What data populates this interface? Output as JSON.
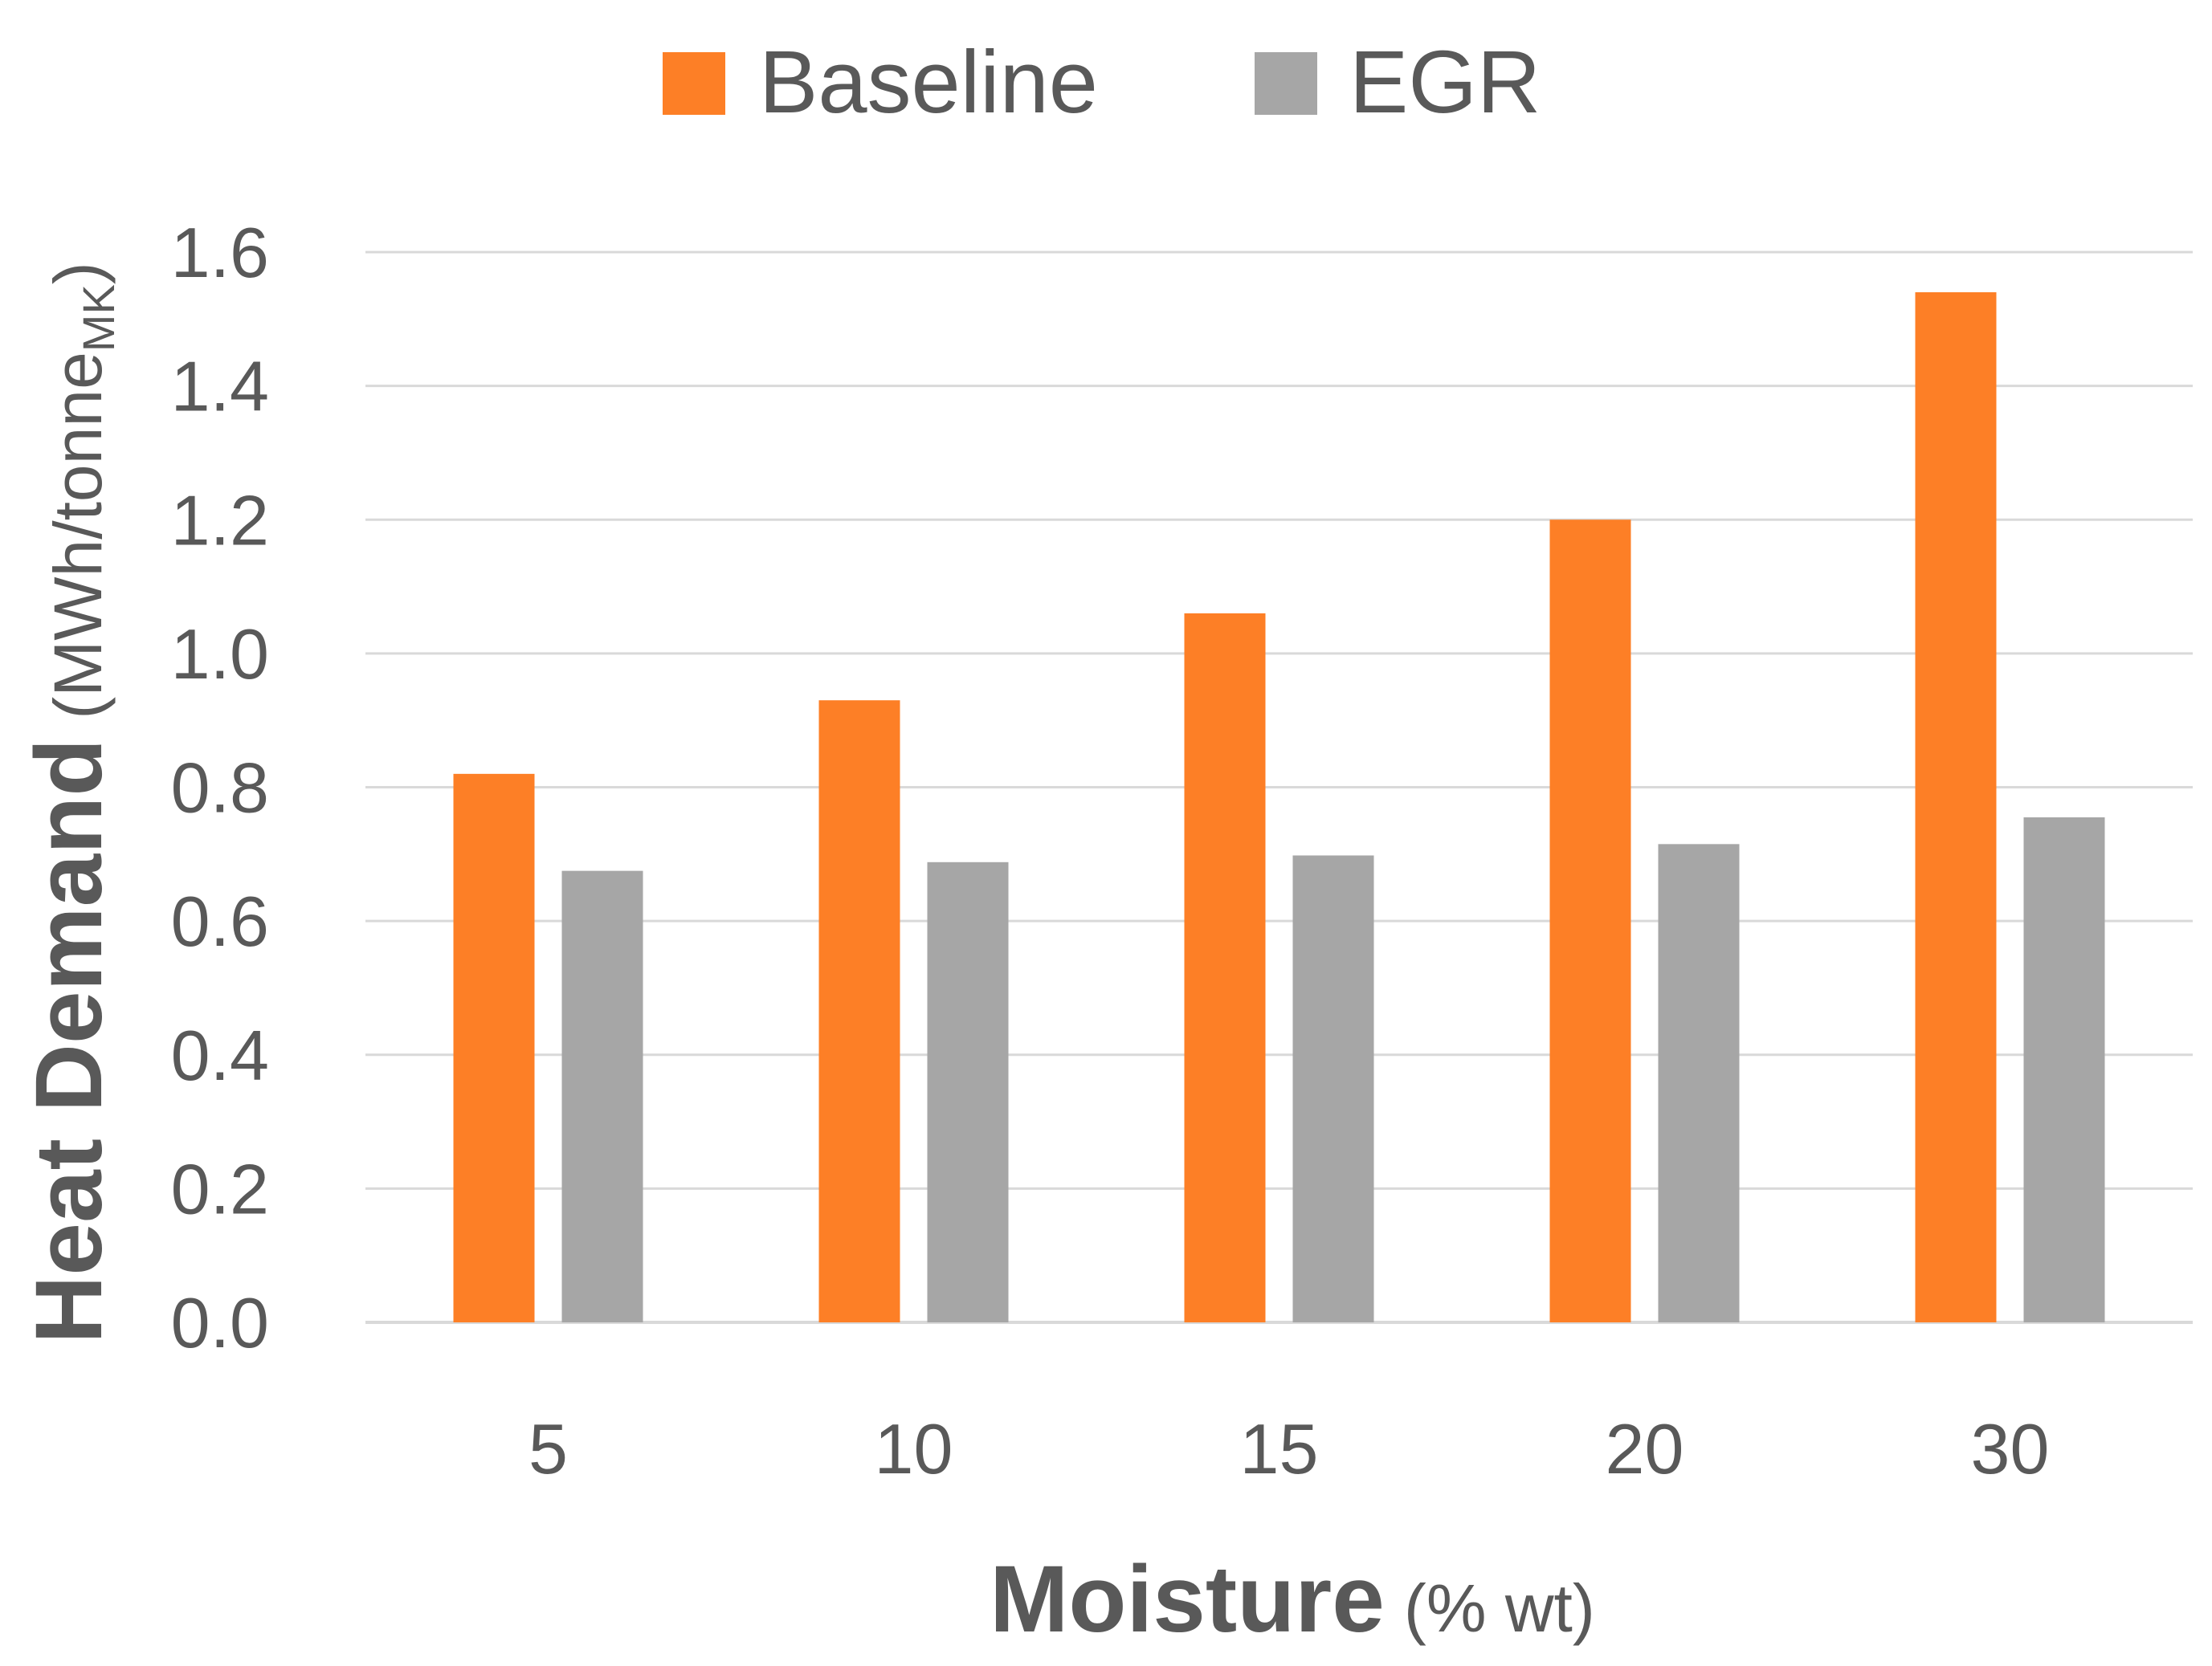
{
  "chart_data": {
    "type": "bar",
    "categories": [
      "5",
      "10",
      "15",
      "20",
      "30"
    ],
    "series": [
      {
        "name": "Baseline",
        "color": "#FD7F26",
        "values": [
          0.82,
          0.93,
          1.06,
          1.2,
          1.54
        ]
      },
      {
        "name": "EGR",
        "color": "#A6A6A6",
        "values": [
          0.675,
          0.688,
          0.698,
          0.715,
          0.755
        ]
      }
    ],
    "ylim": [
      0,
      1.6
    ],
    "yticks": [
      "0.0",
      "0.2",
      "0.4",
      "0.6",
      "0.8",
      "1.0",
      "1.2",
      "1.4",
      "1.6"
    ],
    "xlabel": {
      "main": "Moisture",
      "unit": "(% wt)"
    },
    "ylabel": {
      "main": "Heat Demand",
      "unit_prefix": "(MWh/tonne",
      "unit_subscript": "MK",
      "unit_suffix": ")"
    },
    "legend_position": "top-center",
    "grid": true,
    "text_color": "#595959",
    "grid_color": "#D9D9D9"
  }
}
